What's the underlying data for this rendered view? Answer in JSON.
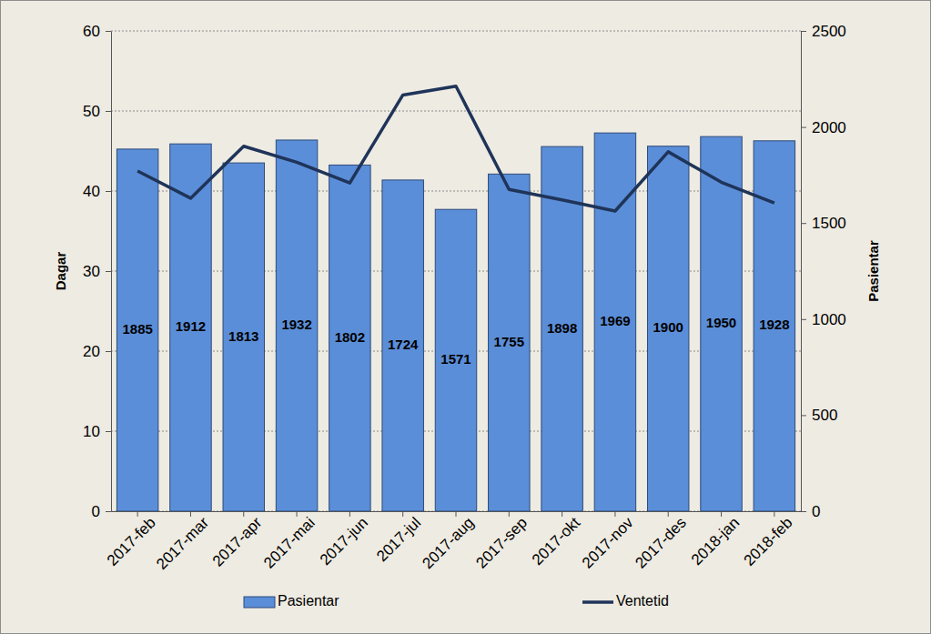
{
  "chart_data": {
    "type": "bar",
    "y_label": "Dagar",
    "y2_label": "Pasientar",
    "categories": [
      "2017-feb",
      "2017-mar",
      "2017-apr",
      "2017-mai",
      "2017-jun",
      "2017-jul",
      "2017-aug",
      "2017-sep",
      "2017-okt",
      "2017-nov",
      "2017-des",
      "2018-jan",
      "2018-feb"
    ],
    "series": [
      {
        "name": "Pasientar",
        "type": "bar",
        "axis": "y2",
        "color": "#5b8ed8",
        "values": [
          1885,
          1912,
          1813,
          1932,
          1802,
          1724,
          1571,
          1755,
          1898,
          1969,
          1900,
          1950,
          1928
        ]
      },
      {
        "name": "Ventetid",
        "type": "line",
        "color": "#1f3459",
        "line_style": "solid",
        "values": [
          42.5,
          39.1,
          45.6,
          43.6,
          41.0,
          52.0,
          53.1,
          40.2,
          38.9,
          37.5,
          44.9,
          41.1,
          38.5
        ]
      }
    ],
    "ylim": [
      0,
      60
    ],
    "yticks": [
      0,
      10,
      20,
      30,
      40,
      50,
      60
    ],
    "y2lim": [
      0,
      2500
    ],
    "y2ticks": [
      0,
      500,
      1000,
      1500,
      2000,
      2500
    ],
    "grid": true,
    "data_labels": true,
    "legend": "bottom"
  }
}
